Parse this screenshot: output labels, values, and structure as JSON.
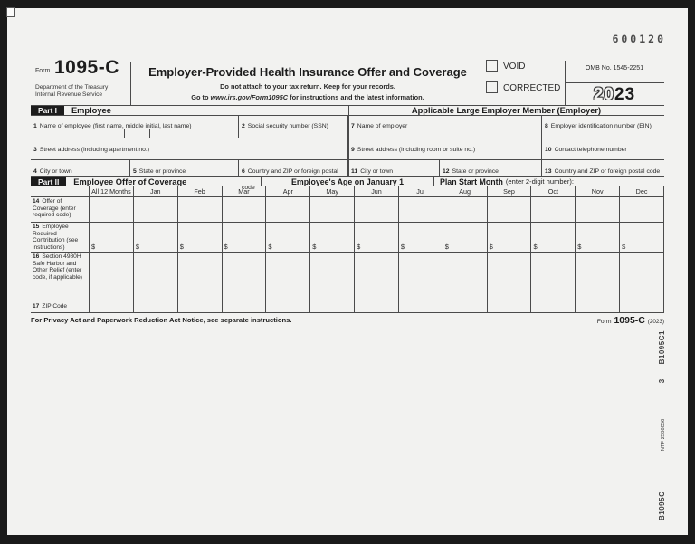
{
  "meta": {
    "batch_number": "600120"
  },
  "header": {
    "form_word": "Form",
    "form_number": "1095-C",
    "dept_line1": "Department of the Treasury",
    "dept_line2": "Internal Revenue Service",
    "title": "Employer-Provided Health Insurance Offer and Coverage",
    "instruction1": "Do not attach to your tax return. Keep for your records.",
    "instruction2_prefix": "Go to",
    "instruction2_url": "www.irs.gov/Form1095C",
    "instruction2_suffix": "for instructions and the latest information.",
    "void_label": "VOID",
    "corrected_label": "CORRECTED",
    "omb_number": "OMB No. 1545-2251",
    "year_outline": "20",
    "year_bold": "23"
  },
  "part1": {
    "badge": "Part I",
    "employee_title": "Employee",
    "employer_title": "Applicable Large Employer Member (Employer)",
    "fields": {
      "f1": {
        "num": "1",
        "label": "Name of employee (first name, middle initial, last name)"
      },
      "f2": {
        "num": "2",
        "label": "Social security number (SSN)"
      },
      "f3": {
        "num": "3",
        "label": "Street address (including apartment no.)"
      },
      "f4": {
        "num": "4",
        "label": "City or town"
      },
      "f5": {
        "num": "5",
        "label": "State or province"
      },
      "f6": {
        "num": "6",
        "label": "Country and ZIP or foreign postal code"
      },
      "f7": {
        "num": "7",
        "label": "Name of employer"
      },
      "f8": {
        "num": "8",
        "label": "Employer identification number (EIN)"
      },
      "f9": {
        "num": "9",
        "label": "Street address (including room or suite no.)"
      },
      "f10": {
        "num": "10",
        "label": "Contact telephone number"
      },
      "f11": {
        "num": "11",
        "label": "City or town"
      },
      "f12": {
        "num": "12",
        "label": "State or province"
      },
      "f13": {
        "num": "13",
        "label": "Country and ZIP or foreign postal code"
      }
    }
  },
  "part2": {
    "badge": "Part II",
    "title": "Employee Offer of Coverage",
    "age_label": "Employee's Age on January 1",
    "plan_start_bold": "Plan Start Month",
    "plan_start_normal": "(enter 2-digit number):",
    "columns": [
      "All 12 Months",
      "Jan",
      "Feb",
      "Mar",
      "Apr",
      "May",
      "Jun",
      "Jul",
      "Aug",
      "Sep",
      "Oct",
      "Nov",
      "Dec"
    ],
    "rows": [
      {
        "num": "14",
        "label": "Offer of Coverage (enter required code)",
        "cell_prefix": ""
      },
      {
        "num": "15",
        "label": "Employee Required Contribution (see instructions)",
        "cell_prefix": "$"
      },
      {
        "num": "16",
        "label": "Section 4980H Safe Harbor and Other Relief (enter code, if applicable)",
        "cell_prefix": ""
      },
      {
        "num": "17",
        "label": "ZIP Code",
        "cell_prefix": ""
      }
    ]
  },
  "footer": {
    "privacy_notice": "For Privacy Act and Paperwork Reduction Act Notice, see separate instructions.",
    "form_word": "Form",
    "form_number": "1095-C",
    "year": "(2023)"
  },
  "side": {
    "bottom": "B1095C",
    "middle": "NTF 2586056",
    "num": "3",
    "top": "B1095C1"
  }
}
